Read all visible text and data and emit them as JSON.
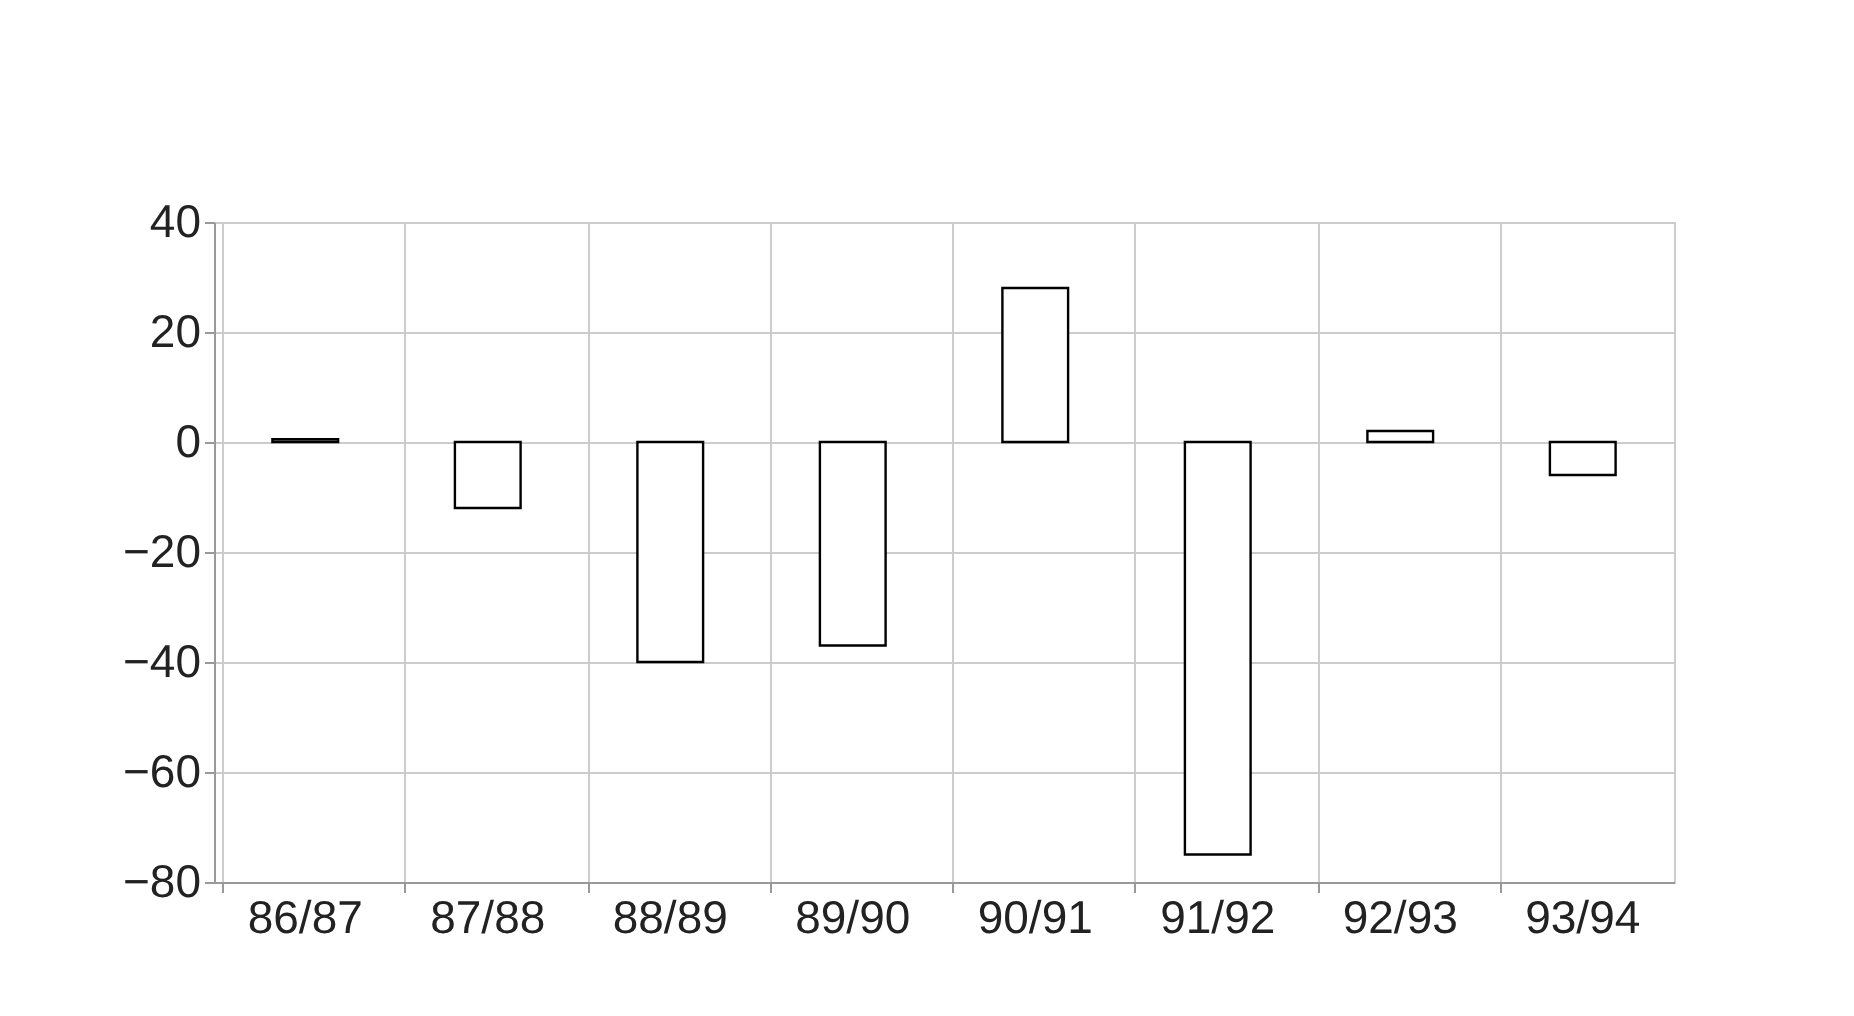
{
  "chart_data": {
    "type": "bar",
    "categories": [
      "86/87",
      "87/88",
      "88/89",
      "89/90",
      "90/91",
      "91/92",
      "92/93",
      "93/94"
    ],
    "values": [
      0.5,
      -12,
      -40,
      -37,
      28,
      -75,
      2,
      -6
    ],
    "color": "#ffffff",
    "ylim": [
      -80,
      40
    ],
    "yticks": [
      -80,
      -60,
      -40,
      -20,
      0,
      20,
      40
    ],
    "grid": true
  }
}
